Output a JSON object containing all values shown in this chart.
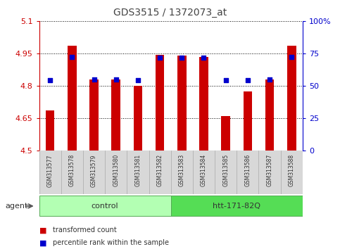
{
  "title": "GDS3515 / 1372073_at",
  "samples": [
    "GSM313577",
    "GSM313578",
    "GSM313579",
    "GSM313580",
    "GSM313581",
    "GSM313582",
    "GSM313583",
    "GSM313584",
    "GSM313585",
    "GSM313586",
    "GSM313587",
    "GSM313588"
  ],
  "red_values": [
    4.685,
    4.985,
    4.83,
    4.83,
    4.8,
    4.945,
    4.94,
    4.935,
    4.66,
    4.775,
    4.83,
    4.985
  ],
  "blue_values": [
    4.825,
    4.935,
    4.83,
    4.83,
    4.825,
    4.93,
    4.93,
    4.93,
    4.825,
    4.825,
    4.83,
    4.935
  ],
  "groups": [
    {
      "label": "control",
      "start": 0,
      "end": 6,
      "color": "#b3ffb3",
      "edge": "#55aa55"
    },
    {
      "label": "htt-171-82Q",
      "start": 6,
      "end": 12,
      "color": "#55dd55",
      "edge": "#55aa55"
    }
  ],
  "group_row_label": "agent",
  "ylim": [
    4.5,
    5.1
  ],
  "yticks": [
    4.5,
    4.65,
    4.8,
    4.95,
    5.1
  ],
  "ytick_labels": [
    "4.5",
    "4.65",
    "4.8",
    "4.95",
    "5.1"
  ],
  "right_yticks": [
    0,
    25,
    50,
    75,
    100
  ],
  "right_ytick_labels": [
    "0",
    "25",
    "50",
    "75",
    "100%"
  ],
  "left_axis_color": "#cc0000",
  "right_axis_color": "#0000cc",
  "bar_color": "#cc0000",
  "dot_color": "#0000cc",
  "legend_items": [
    {
      "label": "transformed count",
      "color": "#cc0000"
    },
    {
      "label": "percentile rank within the sample",
      "color": "#0000cc"
    }
  ],
  "plot_bg": "#ffffff",
  "grid_color": "#000000",
  "sample_bg": "#d8d8d8",
  "fig_bg": "#ffffff",
  "title_color": "#444444"
}
